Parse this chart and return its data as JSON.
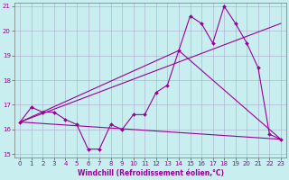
{
  "xlabel": "Windchill (Refroidissement éolien,°C)",
  "background_color": "#c8eef0",
  "line_color": "#990099",
  "grid_color": "#aaaacc",
  "xlim": [
    -0.5,
    23.5
  ],
  "ylim": [
    14.85,
    21.15
  ],
  "yticks": [
    15,
    16,
    17,
    18,
    19,
    20,
    21
  ],
  "xticks": [
    0,
    1,
    2,
    3,
    4,
    5,
    6,
    7,
    8,
    9,
    10,
    11,
    12,
    13,
    14,
    15,
    16,
    17,
    18,
    19,
    20,
    21,
    22,
    23
  ],
  "line1_x": [
    0,
    1,
    2,
    3,
    4,
    5,
    6,
    7,
    8,
    9,
    10,
    11,
    12,
    13,
    14,
    15,
    16,
    17,
    18,
    19,
    20,
    21,
    22,
    23
  ],
  "line1_y": [
    16.3,
    16.9,
    16.7,
    16.7,
    16.4,
    16.2,
    15.2,
    15.2,
    16.2,
    16.0,
    16.6,
    16.6,
    17.5,
    17.8,
    19.2,
    20.6,
    20.3,
    19.5,
    21.0,
    20.3,
    19.5,
    18.5,
    15.8,
    15.6
  ],
  "line2_x": [
    0,
    23
  ],
  "line2_y": [
    16.3,
    20.3
  ],
  "line3_x": [
    0,
    14,
    23
  ],
  "line3_y": [
    16.3,
    19.2,
    15.6
  ],
  "line4_x": [
    0,
    23
  ],
  "line4_y": [
    16.3,
    15.6
  ]
}
